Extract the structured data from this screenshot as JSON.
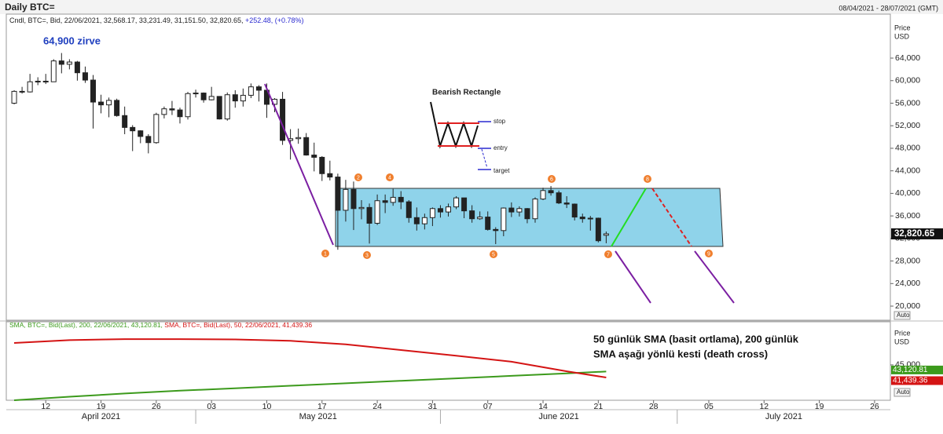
{
  "header": {
    "title": "Daily BTC=",
    "range": "08/04/2021 - 28/07/2021 (GMT)"
  },
  "chart_data": [
    {
      "type": "candlestick",
      "legend_text": "Cndl, BTC=, Bid, 22/06/2021, 32,568.17, 33,231.49, 31,151.50, 32,820.65,",
      "change_text": "+252.48, (+0.78%)",
      "y_axis_label": [
        "Price",
        "USD"
      ],
      "scale_button": "Auto",
      "last_price_label": "32,820.65",
      "up_color": "#ffffff",
      "down_color": "#222222",
      "xlim": [
        "2021-04-07",
        "2021-07-28"
      ],
      "ylim": [
        17500,
        71800
      ],
      "yticks": [
        {
          "value": 20000,
          "label": "20,000"
        },
        {
          "value": 24000,
          "label": "24,000"
        },
        {
          "value": 28000,
          "label": "28,000"
        },
        {
          "value": 32000,
          "label": "32,000"
        },
        {
          "value": 36000,
          "label": "36,000"
        },
        {
          "value": 40000,
          "label": "40,000"
        },
        {
          "value": 44000,
          "label": "44,000"
        },
        {
          "value": 48000,
          "label": "48,000"
        },
        {
          "value": 52000,
          "label": "52,000"
        },
        {
          "value": 56000,
          "label": "56,000"
        },
        {
          "value": 60000,
          "label": "60,000"
        },
        {
          "value": 64000,
          "label": "64,000"
        }
      ],
      "xticks": [
        {
          "value": "2021-04-12",
          "label": "12"
        },
        {
          "value": "2021-04-19",
          "label": "19"
        },
        {
          "value": "2021-04-26",
          "label": "26"
        },
        {
          "value": "2021-05-03",
          "label": "03"
        },
        {
          "value": "2021-05-10",
          "label": "10"
        },
        {
          "value": "2021-05-17",
          "label": "17"
        },
        {
          "value": "2021-05-24",
          "label": "24"
        },
        {
          "value": "2021-05-31",
          "label": "31"
        },
        {
          "value": "2021-06-07",
          "label": "07"
        },
        {
          "value": "2021-06-14",
          "label": "14"
        },
        {
          "value": "2021-06-21",
          "label": "21"
        },
        {
          "value": "2021-06-28",
          "label": "28"
        },
        {
          "value": "2021-07-05",
          "label": "05"
        },
        {
          "value": "2021-07-12",
          "label": "12"
        },
        {
          "value": "2021-07-19",
          "label": "19"
        },
        {
          "value": "2021-07-26",
          "label": "26"
        }
      ],
      "months": [
        {
          "value": "2021-04-01",
          "label": "April 2021"
        },
        {
          "value": "2021-05-01",
          "label": "May 2021"
        },
        {
          "value": "2021-06-01",
          "label": "June 2021"
        },
        {
          "value": "2021-07-01",
          "label": "July 2021"
        }
      ],
      "peak_note": "64,900 zirve",
      "pattern": {
        "title": "Bearish Rectangle",
        "stop": "stop",
        "entry": "entry",
        "target": "target"
      },
      "wave_labels": [
        "1",
        "2",
        "3",
        "4",
        "5",
        "6",
        "7",
        "8",
        "9"
      ],
      "x": [
        "2021-04-08",
        "2021-04-09",
        "2021-04-10",
        "2021-04-11",
        "2021-04-12",
        "2021-04-13",
        "2021-04-14",
        "2021-04-15",
        "2021-04-16",
        "2021-04-17",
        "2021-04-18",
        "2021-04-19",
        "2021-04-20",
        "2021-04-21",
        "2021-04-22",
        "2021-04-23",
        "2021-04-24",
        "2021-04-25",
        "2021-04-26",
        "2021-04-27",
        "2021-04-28",
        "2021-04-29",
        "2021-04-30",
        "2021-05-01",
        "2021-05-02",
        "2021-05-03",
        "2021-05-04",
        "2021-05-05",
        "2021-05-06",
        "2021-05-07",
        "2021-05-08",
        "2021-05-09",
        "2021-05-10",
        "2021-05-11",
        "2021-05-12",
        "2021-05-13",
        "2021-05-14",
        "2021-05-15",
        "2021-05-16",
        "2021-05-17",
        "2021-05-18",
        "2021-05-19",
        "2021-05-20",
        "2021-05-21",
        "2021-05-22",
        "2021-05-23",
        "2021-05-24",
        "2021-05-25",
        "2021-05-26",
        "2021-05-27",
        "2021-05-28",
        "2021-05-29",
        "2021-05-30",
        "2021-05-31",
        "2021-06-01",
        "2021-06-02",
        "2021-06-03",
        "2021-06-04",
        "2021-06-05",
        "2021-06-06",
        "2021-06-07",
        "2021-06-08",
        "2021-06-09",
        "2021-06-10",
        "2021-06-11",
        "2021-06-12",
        "2021-06-13",
        "2021-06-14",
        "2021-06-15",
        "2021-06-16",
        "2021-06-17",
        "2021-06-18",
        "2021-06-19",
        "2021-06-20",
        "2021-06-21",
        "2021-06-22"
      ],
      "open": [
        56000,
        58100,
        58000,
        59800,
        59900,
        59800,
        63500,
        62900,
        63300,
        61400,
        60100,
        56200,
        55700,
        56500,
        53800,
        51700,
        51100,
        50100,
        49000,
        54000,
        55000,
        54800,
        53600,
        57700,
        57800,
        56600,
        57200,
        53200,
        57500,
        56400,
        57400,
        58900,
        58300,
        55800,
        56700,
        49400,
        49700,
        49900,
        46800,
        46400,
        43500,
        42900,
        37000,
        40700,
        37300,
        37500,
        34700,
        38700,
        38400,
        39300,
        38500,
        35700,
        34600,
        35700,
        37300,
        36700,
        37600,
        39200,
        36900,
        35500,
        35800,
        33600,
        33400,
        37400,
        36700,
        37300,
        35500,
        39000,
        40500,
        40100,
        38300,
        38100,
        35800,
        35500,
        35600,
        32568.17
      ],
      "high": [
        58300,
        58900,
        61200,
        60600,
        61200,
        63800,
        64900,
        63800,
        63500,
        62500,
        61000,
        57500,
        57000,
        56800,
        55400,
        52100,
        51200,
        50500,
        54300,
        55400,
        56400,
        55200,
        58000,
        58400,
        57900,
        58900,
        57200,
        57900,
        58300,
        58600,
        59500,
        59200,
        59500,
        56900,
        58000,
        51400,
        51500,
        50700,
        49000,
        46600,
        45800,
        43500,
        42400,
        42100,
        38800,
        38200,
        39800,
        39800,
        40800,
        40400,
        38800,
        37500,
        36400,
        37500,
        37900,
        38200,
        39500,
        39200,
        37900,
        36800,
        36800,
        34000,
        37500,
        38400,
        37700,
        37400,
        39300,
        41000,
        41300,
        40500,
        39500,
        38200,
        36400,
        36000,
        35700,
        33231.49
      ],
      "low": [
        55800,
        57700,
        57900,
        59200,
        59400,
        59800,
        61300,
        62000,
        60000,
        59600,
        51500,
        54200,
        53500,
        53600,
        50500,
        47500,
        48900,
        47100,
        48800,
        53300,
        53900,
        52400,
        53100,
        57000,
        56100,
        56500,
        53100,
        52900,
        55200,
        55400,
        56900,
        56300,
        53400,
        54400,
        48600,
        46000,
        48800,
        46700,
        43900,
        42200,
        42300,
        30000,
        35000,
        33500,
        35400,
        31100,
        34400,
        36500,
        37800,
        37200,
        34800,
        33400,
        33600,
        34200,
        35700,
        35900,
        37200,
        35600,
        34800,
        35300,
        33400,
        31000,
        32400,
        35800,
        35900,
        34700,
        34800,
        38800,
        39600,
        38100,
        37400,
        35200,
        34800,
        33400,
        31300,
        31151.5
      ],
      "close": [
        58100,
        58000,
        59800,
        59900,
        59800,
        63500,
        62900,
        63300,
        61400,
        60100,
        56200,
        55700,
        56500,
        53800,
        51700,
        51100,
        50100,
        49000,
        54000,
        55000,
        54800,
        53600,
        57700,
        57800,
        56600,
        57200,
        53200,
        57500,
        56400,
        57400,
        58900,
        58300,
        55800,
        56700,
        49400,
        49700,
        49900,
        46800,
        46400,
        43500,
        42900,
        37000,
        40700,
        37300,
        37500,
        34700,
        38700,
        38400,
        39300,
        38500,
        35700,
        34600,
        35700,
        37300,
        36700,
        37600,
        39200,
        36900,
        35500,
        35800,
        33600,
        33400,
        37400,
        36700,
        37300,
        35500,
        39000,
        40500,
        40100,
        38300,
        38100,
        35800,
        35500,
        35600,
        31600,
        32820.65
      ]
    },
    {
      "type": "line",
      "y_axis_label": [
        "Price",
        "USD"
      ],
      "scale_button": "Auto",
      "note": [
        "50 günlük SMA (basit ortlama), 200 günlük",
        "SMA aşağı yönlü kesti (death cross)"
      ],
      "ylim": [
        35000,
        57200
      ],
      "yticks": [
        {
          "value": 45000,
          "label": "45,000"
        }
      ],
      "x": [
        "2021-04-08",
        "2021-04-15",
        "2021-04-22",
        "2021-04-29",
        "2021-05-06",
        "2021-05-13",
        "2021-05-20",
        "2021-05-27",
        "2021-06-03",
        "2021-06-10",
        "2021-06-17",
        "2021-06-22"
      ],
      "series": [
        {
          "name": "SMA, BTC=, Bid(Last), 200, 22/06/2021, 43,120.81,",
          "color": "#3c9a1c",
          "last_label": "43,120.81",
          "values": [
            35000,
            36000,
            36900,
            37700,
            38400,
            39100,
            39800,
            40500,
            41200,
            41900,
            42600,
            43120.81
          ]
        },
        {
          "name": "SMA, BTC=, Bid(Last), 50, 22/06/2021, 41,439.36",
          "color": "#d41414",
          "last_label": "41,439.36",
          "values": [
            51200,
            52000,
            52300,
            52300,
            52200,
            51800,
            50800,
            49200,
            47600,
            45900,
            43200,
            41439.36
          ]
        }
      ]
    }
  ]
}
